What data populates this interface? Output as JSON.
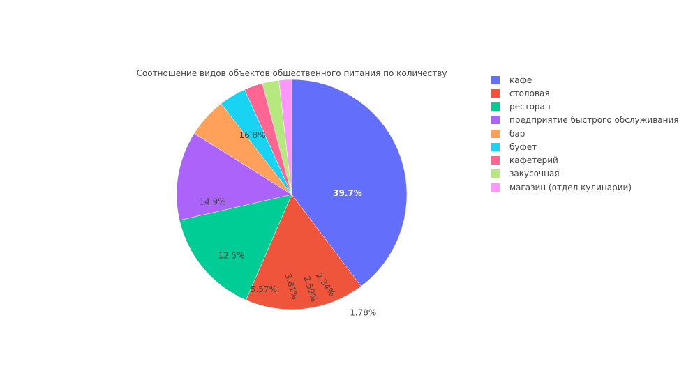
{
  "chart_data": {
    "type": "pie",
    "title": "Соотношение видов объектов общественного питания по количеству",
    "categories": [
      "кафе",
      "столовая",
      "ресторан",
      "предприятие быстрого обслуживания",
      "бар",
      "буфет",
      "кафетерий",
      "закусочная",
      "магазин (отдел кулинарии)"
    ],
    "values": [
      39.7,
      16.8,
      14.9,
      12.5,
      5.57,
      3.81,
      2.59,
      2.34,
      1.78
    ],
    "labels": [
      "39.7%",
      "16.8%",
      "14.9%",
      "12.5%",
      "5.57%",
      "3.81%",
      "2.59%",
      "2.34%",
      "1.78%"
    ],
    "colors": [
      "#636efa",
      "#EF553B",
      "#00cc96",
      "#ab63fa",
      "#FFA15A",
      "#19d3f3",
      "#FF6692",
      "#B6E880",
      "#FF97FF"
    ],
    "label_colors": [
      "#ffffff",
      "#444444",
      "#444444",
      "#444444",
      "#444444",
      "#444444",
      "#444444",
      "#444444",
      "#444444"
    ],
    "direction": "clockwise",
    "legend_position": "right"
  }
}
